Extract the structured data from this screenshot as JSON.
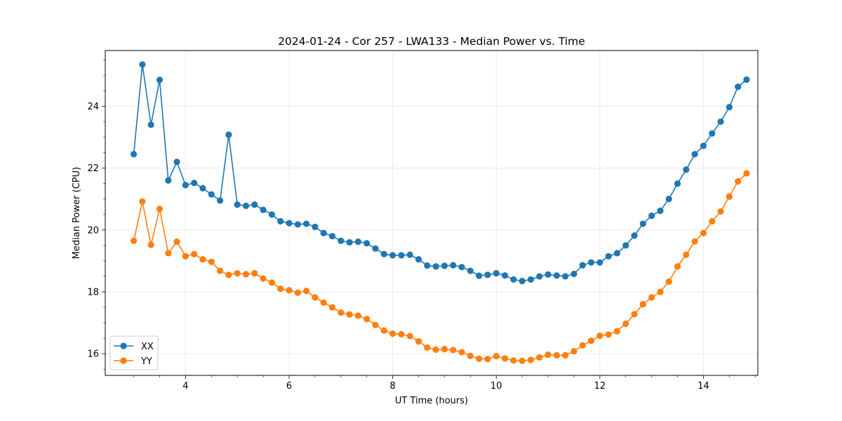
{
  "chart_data": {
    "type": "line",
    "title": "2024-01-24 - Cor 257 - LWA133 - Median Power vs. Time",
    "xlabel": "UT Time (hours)",
    "ylabel": "Median Power (CPU)",
    "xlim": [
      2.45,
      15.05
    ],
    "ylim": [
      15.3,
      25.8
    ],
    "xticks": [
      4,
      6,
      8,
      10,
      12,
      14
    ],
    "xtick_labels": [
      "4",
      "6",
      "8",
      "10",
      "12",
      "14"
    ],
    "yticks": [
      16,
      18,
      20,
      22,
      24
    ],
    "ytick_labels": [
      "16",
      "18",
      "20",
      "22",
      "24"
    ],
    "grid": true,
    "legend_position": "lower-left",
    "x": [
      3.0,
      3.167,
      3.333,
      3.5,
      3.667,
      3.833,
      4.0,
      4.167,
      4.333,
      4.5,
      4.667,
      4.833,
      5.0,
      5.167,
      5.333,
      5.5,
      5.667,
      5.833,
      6.0,
      6.167,
      6.333,
      6.5,
      6.667,
      6.833,
      7.0,
      7.167,
      7.333,
      7.5,
      7.667,
      7.833,
      8.0,
      8.167,
      8.333,
      8.5,
      8.667,
      8.833,
      9.0,
      9.167,
      9.333,
      9.5,
      9.667,
      9.833,
      10.0,
      10.167,
      10.333,
      10.5,
      10.667,
      10.833,
      11.0,
      11.167,
      11.333,
      11.5,
      11.667,
      11.833,
      12.0,
      12.167,
      12.333,
      12.5,
      12.667,
      12.833,
      13.0,
      13.167,
      13.333,
      13.5,
      13.667,
      13.833,
      14.0,
      14.167,
      14.333,
      14.5,
      14.667,
      14.833
    ],
    "series": [
      {
        "name": "XX",
        "color": "#1f77b4",
        "values": [
          22.45,
          25.35,
          23.4,
          24.85,
          21.6,
          22.2,
          21.45,
          21.52,
          21.35,
          21.15,
          20.95,
          23.08,
          20.82,
          20.78,
          20.82,
          20.65,
          20.5,
          20.28,
          20.22,
          20.18,
          20.2,
          20.1,
          19.9,
          19.8,
          19.65,
          19.6,
          19.62,
          19.57,
          19.4,
          19.22,
          19.18,
          19.18,
          19.2,
          19.05,
          18.85,
          18.82,
          18.84,
          18.86,
          18.8,
          18.68,
          18.52,
          18.55,
          18.6,
          18.53,
          18.4,
          18.35,
          18.4,
          18.5,
          18.56,
          18.53,
          18.5,
          18.58,
          18.86,
          18.95,
          18.95,
          19.15,
          19.25,
          19.5,
          19.82,
          20.2,
          20.46,
          20.62,
          21.0,
          21.5,
          21.95,
          22.45,
          22.72,
          23.12,
          23.5,
          23.97,
          24.63,
          24.86
        ]
      },
      {
        "name": "YY",
        "color": "#ff7f0e",
        "values": [
          19.65,
          20.92,
          19.52,
          20.68,
          19.25,
          19.62,
          19.15,
          19.22,
          19.05,
          18.97,
          18.68,
          18.55,
          18.6,
          18.57,
          18.6,
          18.43,
          18.3,
          18.1,
          18.05,
          17.97,
          18.03,
          17.82,
          17.65,
          17.5,
          17.33,
          17.27,
          17.23,
          17.12,
          16.93,
          16.75,
          16.65,
          16.63,
          16.57,
          16.4,
          16.2,
          16.13,
          16.15,
          16.12,
          16.05,
          15.93,
          15.84,
          15.83,
          15.92,
          15.85,
          15.78,
          15.77,
          15.8,
          15.88,
          15.97,
          15.95,
          15.95,
          16.08,
          16.27,
          16.42,
          16.58,
          16.62,
          16.73,
          16.97,
          17.28,
          17.6,
          17.82,
          18.0,
          18.33,
          18.82,
          19.2,
          19.63,
          19.9,
          20.28,
          20.6,
          21.08,
          21.57,
          21.83
        ]
      }
    ]
  }
}
